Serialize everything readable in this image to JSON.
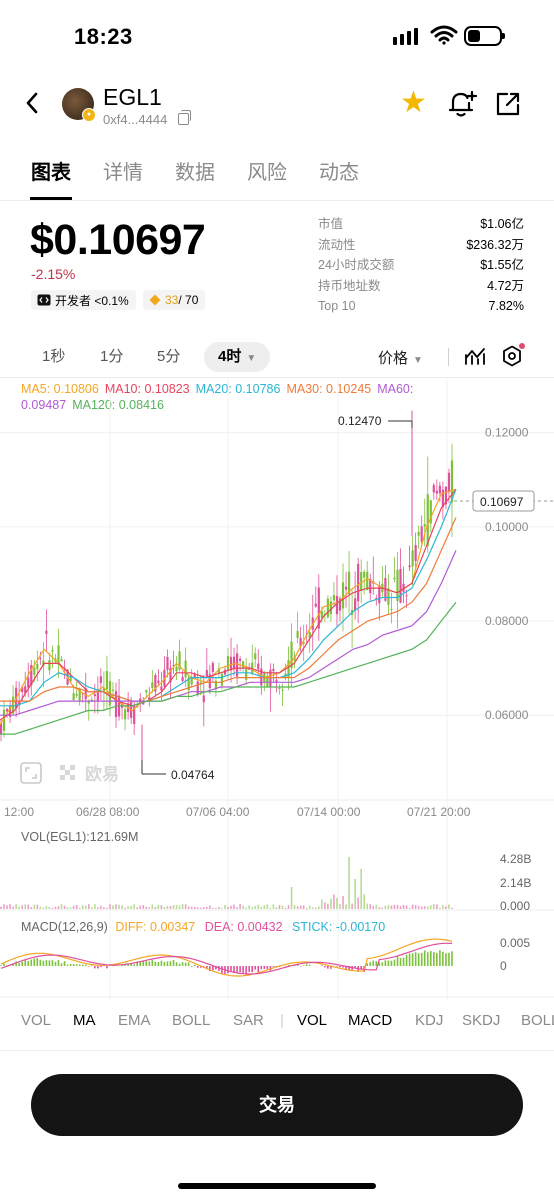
{
  "status": {
    "time": "18:23"
  },
  "header": {
    "token_name": "EGL1",
    "address": "0xf4...4444"
  },
  "tabs": [
    "图表",
    "详情",
    "数据",
    "风险",
    "动态"
  ],
  "price": {
    "value": "$0.10697",
    "change": "-2.15%",
    "dev_label": "开发者 <0.1%",
    "score": "33",
    "score_total": " / 70"
  },
  "stats": [
    {
      "k": "市值",
      "v": "$1.06亿"
    },
    {
      "k": "流动性",
      "v": "$236.32万"
    },
    {
      "k": "24小时成交额",
      "v": "$1.55亿"
    },
    {
      "k": "持币地址数",
      "v": "4.72万"
    },
    {
      "k": "Top 10",
      "v": "7.82%"
    }
  ],
  "intervals": [
    "1秒",
    "1分",
    "5分",
    "4时"
  ],
  "price_selector": "价格",
  "ma_legend": {
    "ma5": "MA5: 0.10806",
    "ma10": "MA10: 0.10823",
    "ma20": "MA20: 0.10786",
    "ma30": "MA30: 0.10245",
    "ma60": "MA60: 0.09487",
    "ma120": "MA120: 0.08416"
  },
  "watermark": "欧易",
  "volume": {
    "title": "VOL(EGL1):121.69M",
    "ticks": [
      "4.28B",
      "2.14B",
      "0.000"
    ]
  },
  "macd": {
    "title": "MACD(12,26,9)",
    "diff": "DIFF: 0.00347",
    "dea": "DEA: 0.00432",
    "stick": "STICK: -0.00170",
    "ticks": [
      "0.005",
      "0"
    ]
  },
  "indicator_bar": [
    "VOL",
    "MA",
    "EMA",
    "BOLL",
    "SAR",
    "VOL",
    "MACD",
    "KDJ",
    "SKDJ",
    "BOLL"
  ],
  "trade_button": "交易",
  "colors": {
    "up": "#7cc13a",
    "down": "#e0509a",
    "ma5": "#f5a623",
    "ma10": "#e8435c",
    "ma20": "#2bb6d6",
    "ma30": "#f07b3a",
    "ma60": "#b25ad6",
    "ma120": "#56b25a",
    "star": "#f5b800"
  },
  "chart_data": {
    "type": "candlestick",
    "y_ticks": [
      "0.12000",
      "0.10000",
      "0.08000",
      "0.06000"
    ],
    "ylim": [
      0.042,
      0.128
    ],
    "x_ticks": [
      "12:00",
      "06/28 08:00",
      "07/06 04:00",
      "07/14 00:00",
      "07/21 20:00"
    ],
    "high_label": "0.12470",
    "low_label": "0.04764",
    "last_price": "0.10697",
    "grid": true,
    "series": [
      {
        "name": "MA5",
        "values": [
          0.058,
          0.063,
          0.069,
          0.074,
          0.071,
          0.066,
          0.064,
          0.066,
          0.063,
          0.061,
          0.064,
          0.067,
          0.071,
          0.068,
          0.067,
          0.07,
          0.071,
          0.07,
          0.068,
          0.069,
          0.072,
          0.078,
          0.083,
          0.084,
          0.087,
          0.089,
          0.087,
          0.086,
          0.088,
          0.1,
          0.107,
          0.108
        ]
      },
      {
        "name": "MA10",
        "values": [
          0.059,
          0.061,
          0.066,
          0.071,
          0.071,
          0.068,
          0.065,
          0.065,
          0.063,
          0.062,
          0.063,
          0.065,
          0.069,
          0.069,
          0.068,
          0.069,
          0.07,
          0.07,
          0.069,
          0.069,
          0.071,
          0.076,
          0.081,
          0.084,
          0.086,
          0.087,
          0.087,
          0.086,
          0.088,
          0.096,
          0.104,
          0.108
        ]
      },
      {
        "name": "MA20",
        "values": [
          0.062,
          0.062,
          0.063,
          0.067,
          0.069,
          0.068,
          0.066,
          0.065,
          0.064,
          0.063,
          0.063,
          0.064,
          0.066,
          0.068,
          0.068,
          0.068,
          0.069,
          0.069,
          0.068,
          0.068,
          0.069,
          0.072,
          0.076,
          0.079,
          0.082,
          0.084,
          0.085,
          0.085,
          0.087,
          0.093,
          0.1,
          0.108
        ]
      },
      {
        "name": "MA30",
        "values": [
          0.063,
          0.063,
          0.063,
          0.065,
          0.066,
          0.066,
          0.065,
          0.065,
          0.064,
          0.063,
          0.063,
          0.064,
          0.065,
          0.066,
          0.067,
          0.067,
          0.068,
          0.068,
          0.068,
          0.068,
          0.068,
          0.07,
          0.073,
          0.076,
          0.078,
          0.08,
          0.081,
          0.082,
          0.084,
          0.088,
          0.095,
          0.102
        ]
      },
      {
        "name": "MA60",
        "values": [
          0.06,
          0.06,
          0.061,
          0.062,
          0.063,
          0.063,
          0.063,
          0.063,
          0.063,
          0.063,
          0.063,
          0.063,
          0.064,
          0.065,
          0.065,
          0.066,
          0.066,
          0.067,
          0.067,
          0.067,
          0.067,
          0.068,
          0.07,
          0.072,
          0.074,
          0.075,
          0.077,
          0.078,
          0.079,
          0.082,
          0.088,
          0.095
        ]
      },
      {
        "name": "MA120",
        "values": [
          0.056,
          0.056,
          0.057,
          0.058,
          0.059,
          0.06,
          0.061,
          0.061,
          0.062,
          0.062,
          0.063,
          0.063,
          0.064,
          0.064,
          0.065,
          0.065,
          0.066,
          0.066,
          0.066,
          0.066,
          0.066,
          0.067,
          0.068,
          0.069,
          0.07,
          0.071,
          0.072,
          0.073,
          0.074,
          0.076,
          0.08,
          0.084
        ]
      }
    ]
  }
}
